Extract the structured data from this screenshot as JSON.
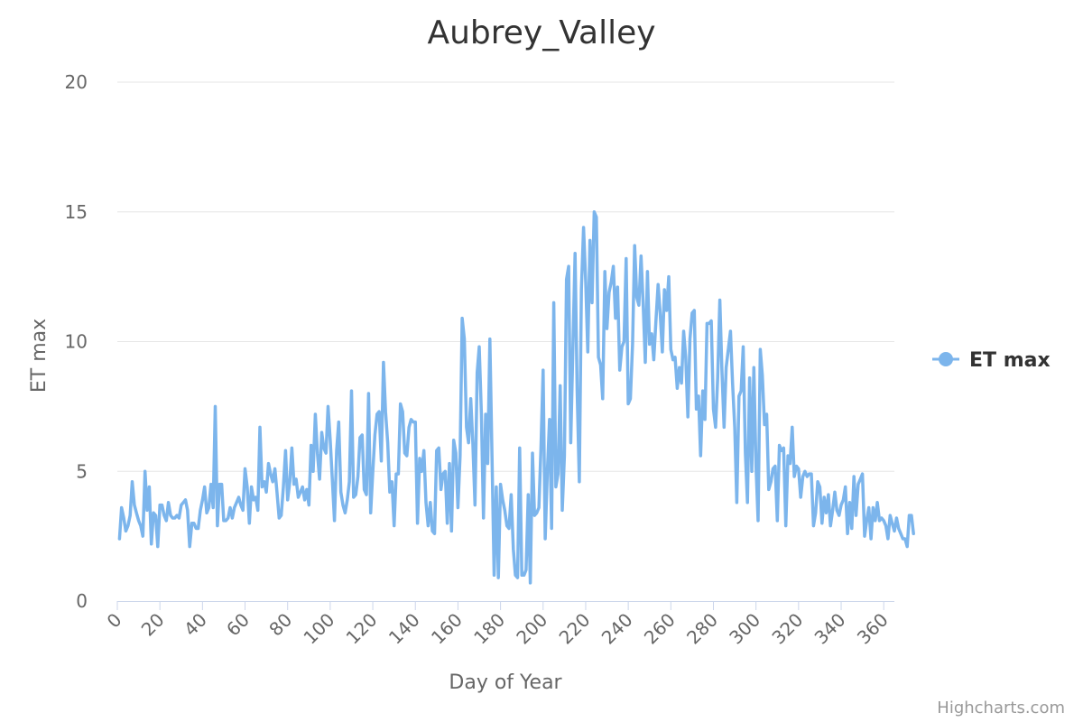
{
  "chart_data": {
    "type": "line",
    "title": "Aubrey_Valley",
    "xlabel": "Day of Year",
    "ylabel": "ET max",
    "xlim": [
      0,
      365
    ],
    "ylim": [
      0,
      20
    ],
    "x_ticks": [
      0,
      20,
      40,
      60,
      80,
      100,
      120,
      140,
      160,
      180,
      200,
      220,
      240,
      260,
      280,
      300,
      320,
      340,
      360
    ],
    "y_ticks": [
      0,
      5,
      10,
      15,
      20
    ],
    "grid": "horizontal",
    "legend_position": "right",
    "series": [
      {
        "name": "ET max",
        "color": "#7cb5ec",
        "x_start": 1,
        "x_step": 1,
        "values": [
          2.4,
          3.6,
          3.2,
          2.7,
          2.9,
          3.3,
          4.6,
          3.7,
          3.4,
          3.1,
          2.9,
          2.5,
          5.0,
          3.5,
          4.4,
          2.2,
          3.4,
          3.3,
          2.1,
          3.7,
          3.7,
          3.3,
          3.1,
          3.8,
          3.3,
          3.2,
          3.2,
          3.3,
          3.2,
          3.7,
          3.8,
          3.9,
          3.5,
          2.1,
          3.0,
          3.0,
          2.8,
          2.8,
          3.5,
          3.9,
          4.4,
          3.4,
          3.6,
          4.5,
          3.6,
          7.5,
          2.9,
          4.5,
          4.5,
          3.1,
          3.1,
          3.2,
          3.6,
          3.2,
          3.6,
          3.8,
          4.0,
          3.7,
          3.5,
          5.1,
          4.4,
          3.0,
          4.4,
          3.9,
          4.0,
          3.5,
          6.7,
          4.4,
          4.6,
          4.2,
          5.3,
          4.9,
          4.6,
          5.1,
          4.2,
          3.2,
          3.3,
          4.4,
          5.8,
          3.9,
          4.6,
          5.9,
          4.5,
          4.7,
          4.0,
          4.2,
          4.4,
          3.9,
          4.3,
          3.7,
          6.0,
          5.0,
          7.2,
          5.7,
          4.7,
          6.5,
          5.9,
          5.7,
          7.5,
          6.2,
          4.7,
          3.1,
          5.8,
          6.9,
          4.2,
          3.7,
          3.4,
          3.9,
          4.6,
          8.1,
          4.0,
          4.1,
          4.8,
          6.3,
          6.4,
          4.3,
          4.1,
          8.0,
          3.4,
          5.0,
          6.4,
          7.2,
          7.3,
          5.4,
          9.2,
          7.3,
          6.1,
          4.2,
          4.6,
          2.9,
          4.9,
          4.9,
          7.6,
          7.3,
          5.7,
          5.6,
          6.7,
          7.0,
          6.9,
          6.9,
          3.0,
          5.5,
          5.0,
          5.8,
          3.8,
          2.9,
          3.8,
          2.7,
          2.6,
          5.8,
          5.9,
          4.3,
          4.9,
          5.0,
          3.0,
          5.3,
          2.7,
          6.2,
          5.7,
          3.6,
          5.6,
          10.9,
          10.1,
          6.7,
          6.1,
          7.8,
          6.1,
          3.7,
          8.8,
          9.8,
          7.2,
          3.2,
          7.2,
          5.3,
          10.1,
          5.5,
          1.0,
          4.4,
          0.9,
          4.5,
          3.9,
          3.5,
          2.9,
          2.8,
          4.1,
          2.0,
          1.0,
          0.9,
          5.9,
          1.0,
          1.0,
          1.2,
          4.1,
          0.7,
          5.7,
          3.3,
          3.4,
          3.6,
          5.9,
          8.9,
          2.4,
          5.0,
          7.0,
          2.8,
          11.5,
          4.4,
          4.9,
          8.3,
          3.5,
          5.6,
          12.4,
          12.9,
          6.1,
          9.8,
          13.4,
          8.1,
          4.6,
          12.0,
          14.4,
          12.3,
          9.6,
          13.9,
          11.5,
          15.0,
          14.8,
          9.4,
          9.1,
          7.8,
          12.7,
          10.5,
          11.9,
          12.3,
          12.9,
          10.9,
          12.1,
          8.9,
          9.8,
          10.0,
          13.2,
          7.6,
          7.8,
          9.9,
          13.7,
          11.7,
          11.4,
          13.3,
          11.5,
          9.2,
          12.7,
          9.9,
          10.3,
          9.3,
          10.8,
          12.2,
          11.1,
          9.6,
          12.0,
          11.2,
          12.5,
          9.7,
          9.3,
          9.4,
          8.2,
          9.0,
          8.4,
          10.4,
          9.4,
          7.1,
          10.1,
          11.1,
          11.2,
          7.4,
          7.9,
          5.6,
          8.1,
          7.0,
          10.7,
          10.7,
          10.8,
          7.4,
          6.7,
          8.6,
          11.6,
          8.9,
          6.7,
          9.0,
          9.7,
          10.4,
          8.4,
          6.7,
          3.8,
          7.9,
          8.1,
          9.8,
          5.7,
          3.8,
          8.6,
          5.0,
          9.0,
          5.2,
          3.1,
          9.7,
          8.7,
          6.8,
          7.2,
          4.3,
          4.6,
          5.1,
          5.2,
          3.1,
          6.0,
          5.8,
          5.9,
          2.9,
          5.6,
          5.3,
          6.7,
          4.8,
          5.2,
          5.1,
          4.0,
          4.8,
          5.0,
          4.8,
          4.9,
          4.9,
          2.9,
          3.4,
          4.6,
          4.4,
          3.0,
          4.0,
          3.4,
          4.1,
          2.9,
          3.5,
          4.2,
          3.5,
          3.3,
          3.7,
          3.9,
          4.4,
          2.6,
          3.8,
          2.8,
          4.8,
          3.3,
          4.5,
          4.7,
          4.9,
          2.5,
          3.1,
          3.6,
          2.4,
          3.6,
          3.1,
          3.8,
          3.1,
          3.2,
          3.1,
          2.9,
          2.4,
          3.3,
          3.0,
          2.7,
          3.2,
          2.8,
          2.6,
          2.4,
          2.4,
          2.1,
          3.3,
          3.3,
          2.6
        ]
      }
    ],
    "credits": "Highcharts.com"
  }
}
